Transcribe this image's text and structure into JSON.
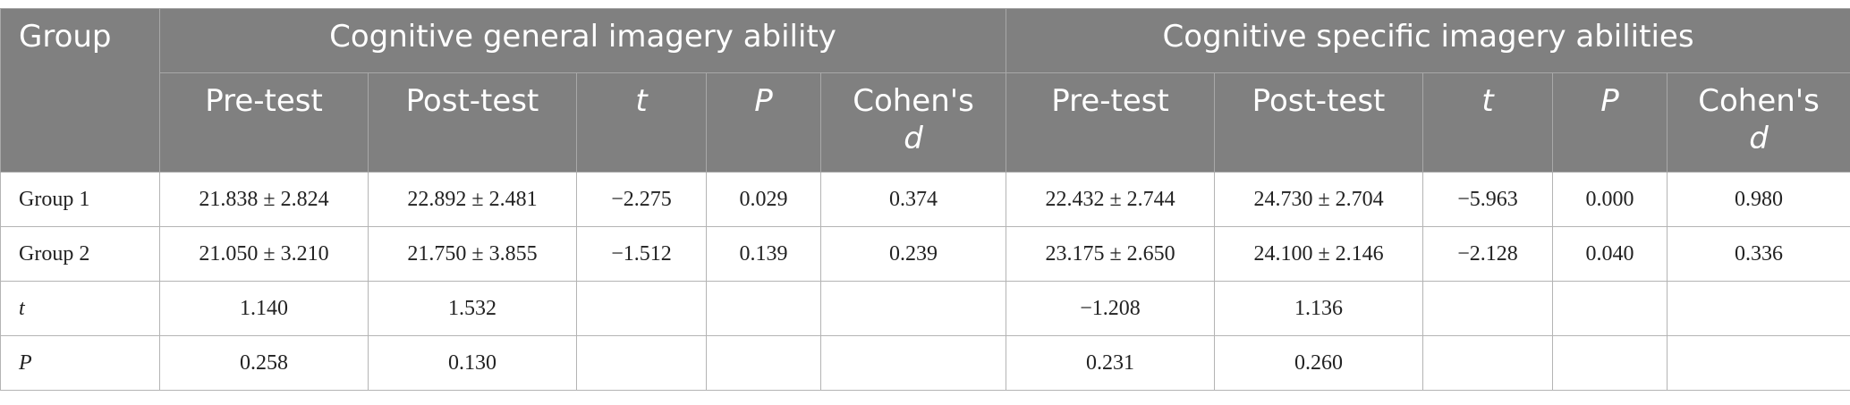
{
  "header": {
    "group": "Group",
    "section_general": "Cognitive general imagery ability",
    "section_specific": "Cognitive specific imagery abilities",
    "pre_test": "Pre-test",
    "post_test": "Post-test",
    "t": "t",
    "p": "P",
    "cohens_d_prefix": "Cohen's",
    "cohens_d_symbol": "d"
  },
  "rows": [
    {
      "label": "Group 1",
      "general": {
        "pre": "21.838 ± 2.824",
        "post": "22.892 ± 2.481",
        "t": "−2.275",
        "p": "0.029",
        "d": "0.374"
      },
      "specific": {
        "pre": "22.432 ± 2.744",
        "post": "24.730 ± 2.704",
        "t": "−5.963",
        "p": "0.000",
        "d": "0.980"
      }
    },
    {
      "label": "Group 2",
      "general": {
        "pre": "21.050 ± 3.210",
        "post": "21.750 ± 3.855",
        "t": "−1.512",
        "p": "0.139",
        "d": "0.239"
      },
      "specific": {
        "pre": "23.175 ± 2.650",
        "post": "24.100 ± 2.146",
        "t": "−2.128",
        "p": "0.040",
        "d": "0.336"
      }
    },
    {
      "label": "t",
      "general": {
        "pre": "1.140",
        "post": "1.532",
        "t": "",
        "p": "",
        "d": ""
      },
      "specific": {
        "pre": "−1.208",
        "post": "1.136",
        "t": "",
        "p": "",
        "d": ""
      }
    },
    {
      "label": "P",
      "general": {
        "pre": "0.258",
        "post": "0.130",
        "t": "",
        "p": "",
        "d": ""
      },
      "specific": {
        "pre": "0.231",
        "post": "0.260",
        "t": "",
        "p": "",
        "d": ""
      }
    }
  ]
}
